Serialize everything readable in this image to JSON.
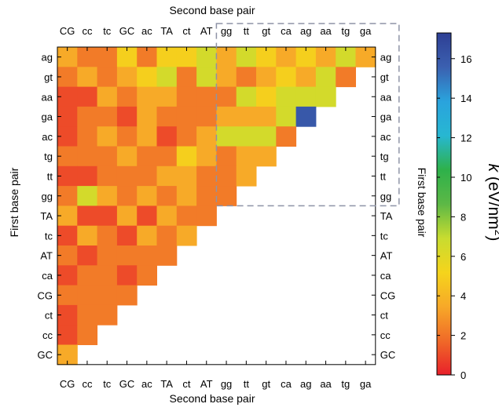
{
  "chart_data": {
    "type": "heatmap",
    "title": "",
    "x_axis_label_top": "Second base pair",
    "x_axis_label_bottom": "Second base pair",
    "y_axis_label_left": "First base pair",
    "y_axis_label_right": "First base pair",
    "columns": [
      "CG",
      "cc",
      "tc",
      "GC",
      "ac",
      "TA",
      "ct",
      "AT",
      "gg",
      "tt",
      "gt",
      "ca",
      "ag",
      "aa",
      "tg",
      "ga"
    ],
    "rows": [
      "ag",
      "gt",
      "aa",
      "ga",
      "ac",
      "tg",
      "tt",
      "gg",
      "TA",
      "tc",
      "AT",
      "ca",
      "CG",
      "ct",
      "cc",
      "GC"
    ],
    "values": [
      [
        3.5,
        2.2,
        2.2,
        5.0,
        2.2,
        5.0,
        5.0,
        6.5,
        3.5,
        6.5,
        5.0,
        3.5,
        5.0,
        3.5,
        6.5,
        3.5
      ],
      [
        2.2,
        3.5,
        2.2,
        3.5,
        5.0,
        6.5,
        2.2,
        6.5,
        3.5,
        2.2,
        3.5,
        5.0,
        3.5,
        6.5,
        2.2,
        null
      ],
      [
        1.0,
        1.0,
        3.5,
        2.2,
        3.5,
        3.5,
        2.2,
        2.2,
        2.2,
        6.5,
        5.0,
        6.5,
        6.5,
        6.5,
        null,
        null
      ],
      [
        1.0,
        2.2,
        2.2,
        1.0,
        3.5,
        2.2,
        2.2,
        2.2,
        3.5,
        3.5,
        3.5,
        6.5,
        16.0,
        null,
        null,
        null
      ],
      [
        1.0,
        2.2,
        3.5,
        2.2,
        3.5,
        1.0,
        2.2,
        3.5,
        6.5,
        6.5,
        6.5,
        2.2,
        null,
        null,
        null,
        null
      ],
      [
        2.2,
        2.2,
        2.2,
        3.5,
        2.2,
        2.2,
        5.0,
        3.5,
        2.2,
        3.5,
        3.5,
        null,
        null,
        null,
        null,
        null
      ],
      [
        1.0,
        1.0,
        2.2,
        2.2,
        2.2,
        3.5,
        3.5,
        2.2,
        2.2,
        3.5,
        null,
        null,
        null,
        null,
        null,
        null
      ],
      [
        2.2,
        6.5,
        3.5,
        2.2,
        3.5,
        2.2,
        3.5,
        2.2,
        2.2,
        null,
        null,
        null,
        null,
        null,
        null,
        null
      ],
      [
        3.5,
        1.0,
        1.0,
        3.5,
        1.0,
        3.5,
        2.2,
        2.2,
        null,
        null,
        null,
        null,
        null,
        null,
        null,
        null
      ],
      [
        1.0,
        3.5,
        2.2,
        1.0,
        3.5,
        2.2,
        3.5,
        null,
        null,
        null,
        null,
        null,
        null,
        null,
        null,
        null
      ],
      [
        2.2,
        1.0,
        2.2,
        2.2,
        2.2,
        2.2,
        null,
        null,
        null,
        null,
        null,
        null,
        null,
        null,
        null,
        null
      ],
      [
        1.0,
        2.2,
        2.2,
        1.0,
        2.2,
        null,
        null,
        null,
        null,
        null,
        null,
        null,
        null,
        null,
        null,
        null
      ],
      [
        2.2,
        2.2,
        2.2,
        2.2,
        null,
        null,
        null,
        null,
        null,
        null,
        null,
        null,
        null,
        null,
        null,
        null
      ],
      [
        1.0,
        2.2,
        2.2,
        null,
        null,
        null,
        null,
        null,
        null,
        null,
        null,
        null,
        null,
        null,
        null,
        null
      ],
      [
        1.0,
        2.2,
        null,
        null,
        null,
        null,
        null,
        null,
        null,
        null,
        null,
        null,
        null,
        null,
        null,
        null
      ],
      [
        3.5,
        null,
        null,
        null,
        null,
        null,
        null,
        null,
        null,
        null,
        null,
        null,
        null,
        null,
        null,
        null
      ]
    ],
    "colorbar": {
      "label": "k (eV/nm²)",
      "min": 0,
      "max": 17.3,
      "ticks": [
        0,
        2,
        4,
        6,
        8,
        10,
        12,
        14,
        16
      ],
      "colormap": [
        "#e8202a",
        "#f06a28",
        "#f7a928",
        "#f5d41c",
        "#c8dc30",
        "#5cb846",
        "#2eb14a",
        "#27b7d2",
        "#2aa3dd",
        "#3b60b0",
        "#2e3f94"
      ]
    },
    "highlight_region": {
      "description_columns": [
        "gg",
        "tt",
        "gt",
        "ca",
        "ag",
        "aa",
        "tg",
        "ga"
      ],
      "description_rows": [
        "ag",
        "gt",
        "aa",
        "ga",
        "ac",
        "tg",
        "tt",
        "gg"
      ],
      "style": "dashed",
      "color": "#8e93a6"
    },
    "grid": false
  }
}
